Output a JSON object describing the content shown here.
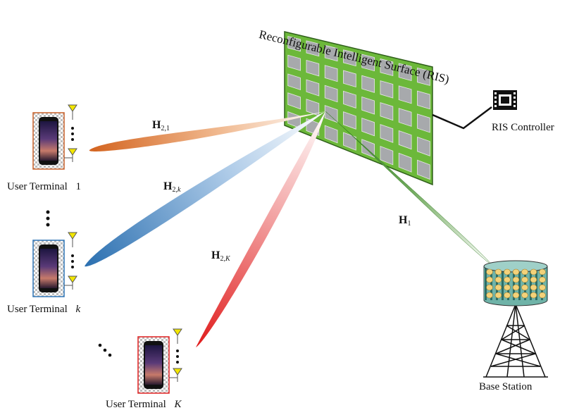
{
  "ris": {
    "title": "Reconfigurable Intelligent Surface (RIS)"
  },
  "controller": {
    "label": "RIS Controller"
  },
  "base_station": {
    "label": "Base Station"
  },
  "users": [
    {
      "label": "User Terminal",
      "index": "1"
    },
    {
      "label": "User Terminal",
      "index": "k"
    },
    {
      "label": "User Terminal",
      "index": "K"
    }
  ],
  "channels": {
    "h21": {
      "symbol": "H",
      "sub": "2,1"
    },
    "h2k": {
      "symbol": "H",
      "sub_main": "2,",
      "sub_var": "k"
    },
    "h2K": {
      "symbol": "H",
      "sub_main": "2,",
      "sub_var": "K"
    },
    "h1": {
      "symbol": "H",
      "sub": "1"
    }
  },
  "colors": {
    "ris_panel": "#6fbb3c",
    "ris_tile": "#a7a9ac",
    "beam_user1": "#d96a1f",
    "beam_userk": "#2e75b6",
    "beam_userK": "#e02020",
    "beam_bs": "#2e7d1f",
    "antenna": "#f2e600",
    "bs_body": "#6fb3a8"
  },
  "icons": [
    "phone-icon",
    "antenna-icon",
    "controller-chip-icon",
    "tower-icon"
  ]
}
